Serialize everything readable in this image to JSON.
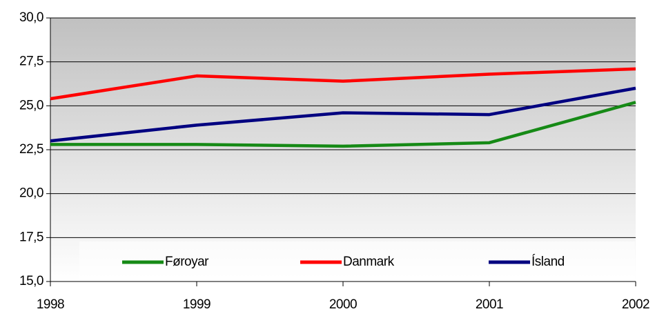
{
  "chart_data": {
    "type": "line",
    "categories": [
      "1998",
      "1999",
      "2000",
      "2001",
      "2002"
    ],
    "series": [
      {
        "name": "Føroyar",
        "color": "#168a16",
        "values": [
          22.8,
          22.8,
          22.7,
          22.9,
          25.2
        ]
      },
      {
        "name": "Danmark",
        "color": "#ff0000",
        "values": [
          25.4,
          26.7,
          26.4,
          26.8,
          27.1
        ]
      },
      {
        "name": "Ísland",
        "color": "#000080",
        "values": [
          23.0,
          23.9,
          24.6,
          24.5,
          26.0
        ]
      }
    ],
    "ylim": [
      15,
      30
    ],
    "yticks": [
      {
        "value": 15,
        "label": "15,0"
      },
      {
        "value": 17.5,
        "label": "17,5"
      },
      {
        "value": 20,
        "label": "20,0"
      },
      {
        "value": 22.5,
        "label": "22,5"
      },
      {
        "value": 25,
        "label": "25,0"
      },
      {
        "value": 27.5,
        "label": "27,5"
      },
      {
        "value": 30,
        "label": "30,0"
      }
    ],
    "grid": true,
    "legend": "bottom"
  }
}
